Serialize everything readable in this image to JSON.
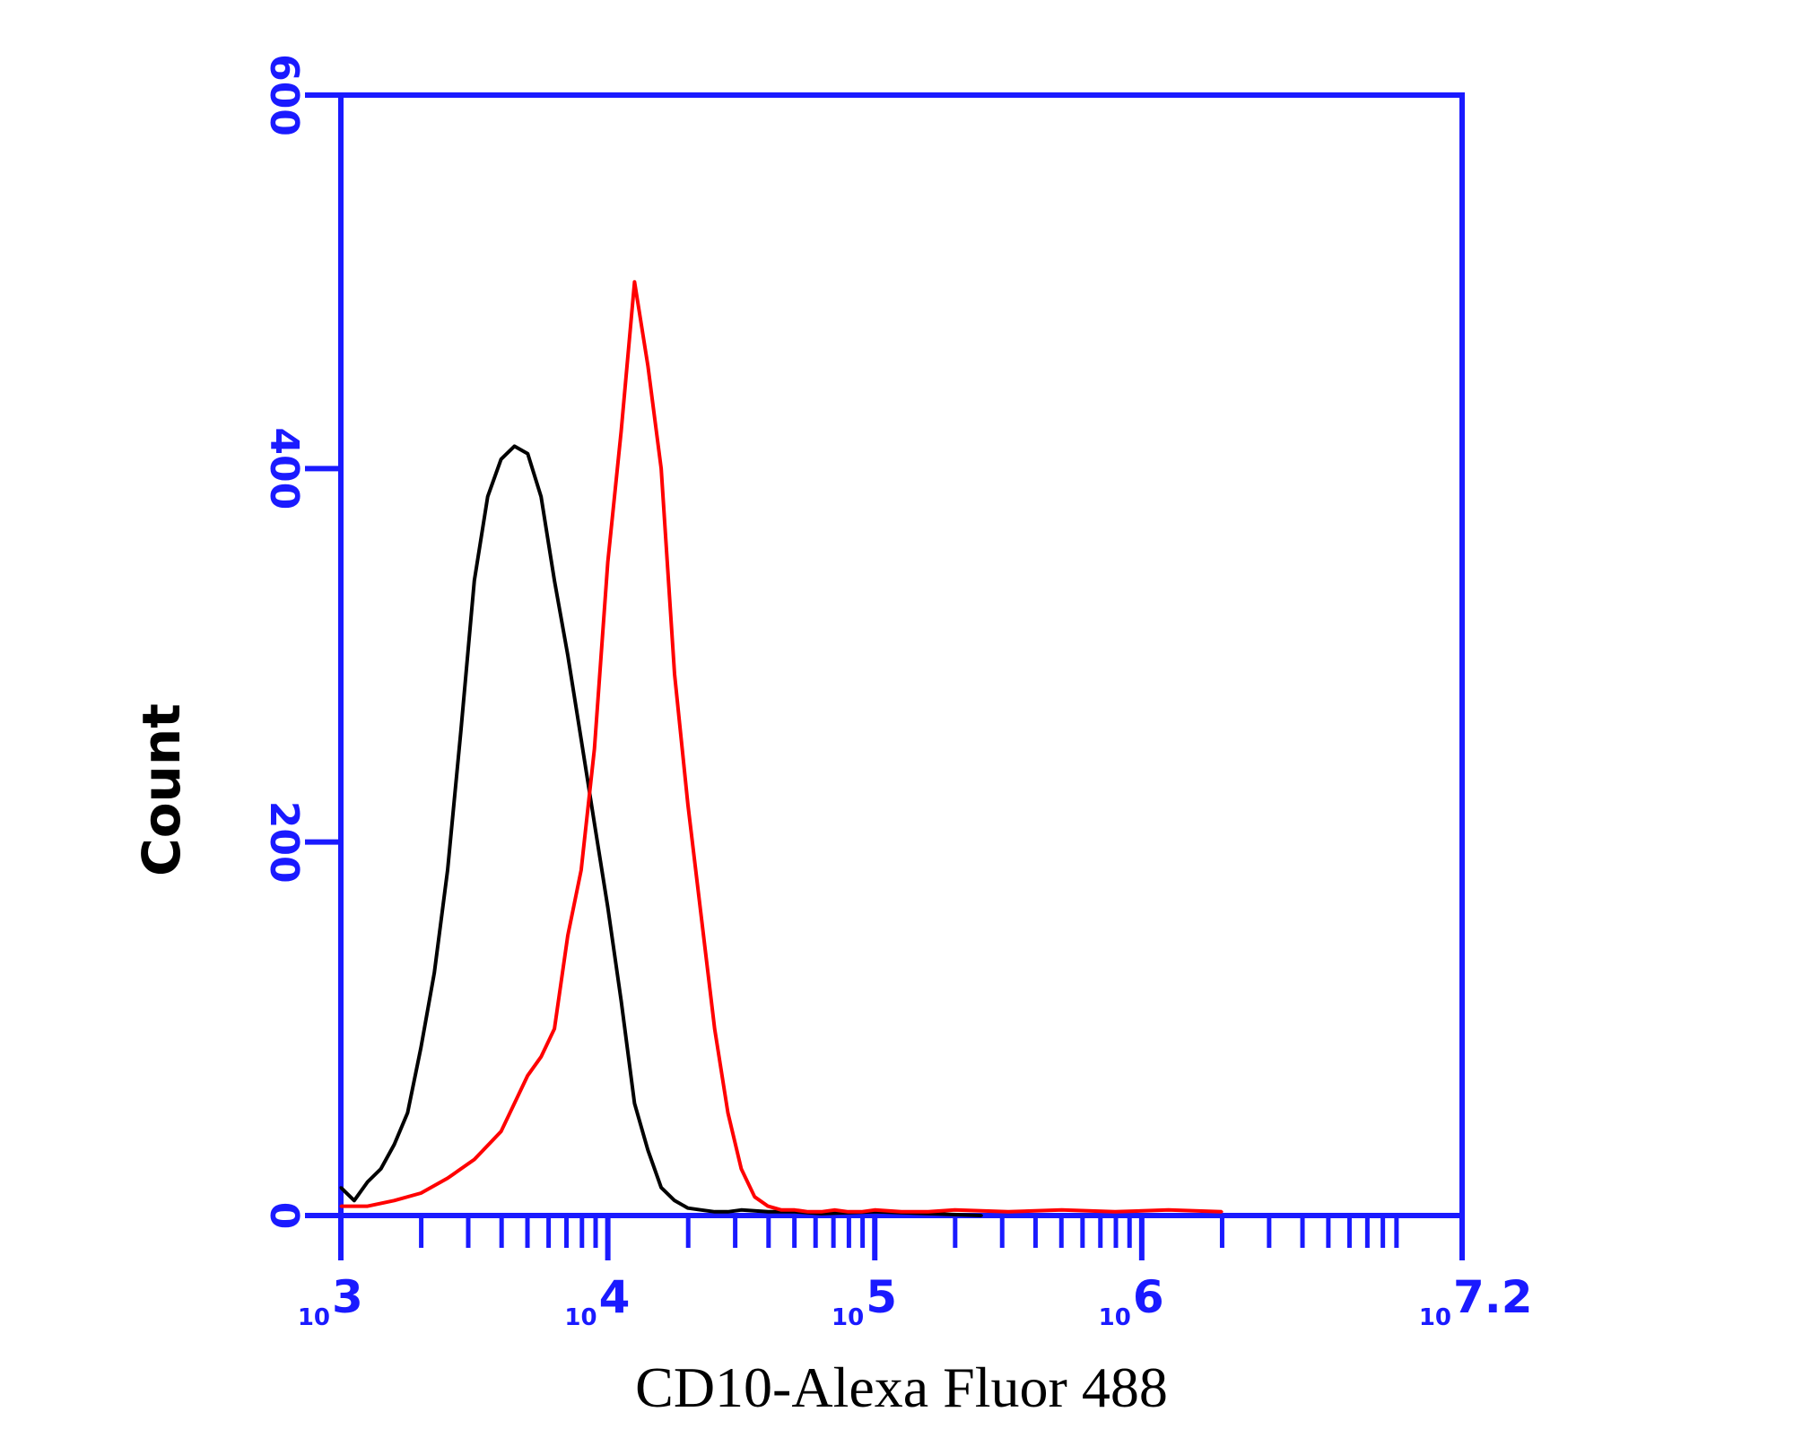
{
  "chart_data": {
    "type": "line",
    "title": "",
    "xlabel": "CD10-Alexa Fluor 488",
    "ylabel": "Count",
    "x_scale": "log10",
    "xlim": [
      3,
      7.2
    ],
    "ylim": [
      0,
      600
    ],
    "x_ticks": [
      {
        "base": "10",
        "exp": "3",
        "value": 3
      },
      {
        "base": "10",
        "exp": "4",
        "value": 4
      },
      {
        "base": "10",
        "exp": "5",
        "value": 5
      },
      {
        "base": "10",
        "exp": "6",
        "value": 6
      },
      {
        "base": "10",
        "exp": "7.2",
        "value": 7.2
      }
    ],
    "y_ticks": [
      "0",
      "200",
      "400",
      "600"
    ],
    "grid": false,
    "legend": "none",
    "colors": {
      "axis": "#1a1aff",
      "control": "#000000",
      "sample": "#ff0000"
    },
    "series": [
      {
        "color": "#000000",
        "x": [
          3.0,
          3.05,
          3.1,
          3.15,
          3.2,
          3.25,
          3.3,
          3.35,
          3.4,
          3.45,
          3.5,
          3.55,
          3.6,
          3.65,
          3.7,
          3.75,
          3.8,
          3.85,
          3.9,
          3.95,
          4.0,
          4.05,
          4.1,
          4.15,
          4.2,
          4.25,
          4.3,
          4.35,
          4.4,
          4.45,
          4.5,
          4.6,
          4.7,
          4.8,
          5.0,
          5.2,
          5.4
        ],
        "y": [
          15,
          8,
          18,
          25,
          38,
          55,
          90,
          130,
          185,
          260,
          340,
          385,
          405,
          412,
          408,
          385,
          340,
          300,
          255,
          210,
          165,
          115,
          60,
          35,
          15,
          8,
          4,
          3,
          2,
          2,
          3,
          2,
          2,
          1,
          2,
          1,
          0
        ]
      },
      {
        "color": "#ff0000",
        "x": [
          3.0,
          3.1,
          3.2,
          3.3,
          3.4,
          3.5,
          3.6,
          3.7,
          3.75,
          3.8,
          3.85,
          3.9,
          3.95,
          4.0,
          4.05,
          4.1,
          4.15,
          4.2,
          4.25,
          4.3,
          4.35,
          4.4,
          4.45,
          4.5,
          4.55,
          4.6,
          4.65,
          4.7,
          4.75,
          4.8,
          4.85,
          4.9,
          4.95,
          5.0,
          5.1,
          5.2,
          5.3,
          5.5,
          5.7,
          5.9,
          6.1,
          6.3
        ],
        "y": [
          5,
          5,
          8,
          12,
          20,
          30,
          45,
          75,
          85,
          100,
          150,
          185,
          250,
          350,
          420,
          500,
          455,
          400,
          290,
          220,
          160,
          100,
          55,
          25,
          10,
          5,
          3,
          3,
          2,
          2,
          3,
          2,
          2,
          3,
          2,
          2,
          3,
          2,
          3,
          2,
          3,
          2
        ]
      }
    ]
  }
}
